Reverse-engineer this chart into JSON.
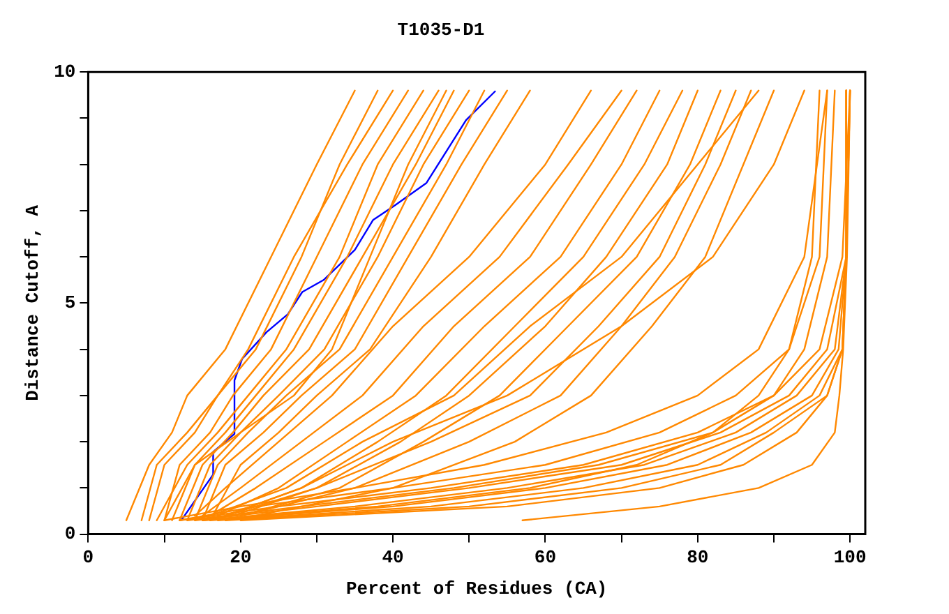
{
  "chart_data": {
    "type": "line",
    "title": "T1035-D1",
    "xlabel": "Percent of Residues (CA)",
    "ylabel": "Distance Cutoff, A",
    "xlim": [
      0,
      102
    ],
    "xticks": [
      0,
      {
        "value": 10,
        "label": null
      },
      20,
      {
        "value": 30,
        "label": null
      },
      40,
      {
        "value": 50,
        "label": null
      },
      60,
      {
        "value": 70,
        "label": null
      },
      80,
      {
        "value": 90,
        "label": null
      },
      100
    ],
    "ylim": [
      0,
      10
    ],
    "yticks": [
      0,
      {
        "value": 1,
        "label": null
      },
      {
        "value": 2,
        "label": null
      },
      {
        "value": 3,
        "label": null
      },
      {
        "value": 4,
        "label": null
      },
      5,
      {
        "value": 6,
        "label": null
      },
      {
        "value": 7,
        "label": null
      },
      {
        "value": 8,
        "label": null
      },
      {
        "value": 9,
        "label": null
      },
      10
    ],
    "grid": false,
    "legend": false,
    "marker": "none",
    "line_style": "solid",
    "series": [
      {
        "color": "#ff8800",
        "x": [
          5,
          8,
          11,
          13,
          18,
          24,
          30,
          35
        ],
        "values": [
          0.3,
          1.5,
          2.2,
          3,
          4,
          6,
          8,
          9.6
        ]
      },
      {
        "color": "#ff8800",
        "x": [
          8,
          10,
          14,
          17,
          22,
          28,
          33,
          38
        ],
        "values": [
          0.3,
          1.5,
          2.2,
          3,
          4,
          6,
          8,
          9.6
        ]
      },
      {
        "color": "#ff8800",
        "x": [
          7,
          9,
          13,
          17,
          21,
          27,
          34,
          40
        ],
        "values": [
          0.3,
          1.5,
          2.2,
          3,
          4,
          6,
          8,
          9.6
        ]
      },
      {
        "color": "#ff8800",
        "x": [
          10,
          12,
          16,
          19,
          24,
          30,
          36,
          42
        ],
        "values": [
          0.3,
          1.5,
          2.2,
          3,
          4,
          6,
          8,
          9.6
        ]
      },
      {
        "color": "#ff8800",
        "x": [
          9,
          13,
          17,
          21,
          26,
          33,
          38,
          44
        ],
        "values": [
          0.3,
          1.5,
          2.2,
          3,
          4,
          6,
          8,
          9.6
        ]
      },
      {
        "color": "#ff8800",
        "x": [
          11,
          14,
          18,
          22,
          27,
          34,
          40,
          46
        ],
        "values": [
          0.3,
          1.5,
          2.2,
          3,
          4,
          6,
          8,
          9.6
        ]
      },
      {
        "color": "#ff8800",
        "x": [
          12,
          15,
          19,
          23,
          29,
          36,
          43,
          48
        ],
        "values": [
          0.3,
          1.5,
          2.2,
          3,
          4,
          6,
          8,
          9.6
        ]
      },
      {
        "color": "#ff8800",
        "x": [
          13,
          16,
          20,
          25,
          31,
          38,
          44,
          50
        ],
        "values": [
          0.3,
          1.5,
          2.2,
          3,
          4,
          6,
          8,
          9.6
        ]
      },
      {
        "color": "#ff8800",
        "x": [
          14,
          17,
          21,
          26,
          33,
          40,
          47,
          52
        ],
        "values": [
          0.3,
          1.5,
          2.2,
          3,
          4,
          6,
          8,
          9.6
        ]
      },
      {
        "color": "#ff8800",
        "x": [
          15,
          18,
          23,
          28,
          35,
          42,
          49,
          55
        ],
        "values": [
          0.3,
          1.5,
          2.2,
          3,
          4,
          6,
          8,
          9.6
        ]
      },
      {
        "color": "#ff8800",
        "x": [
          16,
          20,
          25,
          30,
          37,
          45,
          52,
          58
        ],
        "values": [
          0.3,
          1.5,
          2.2,
          3,
          4,
          6,
          8,
          9.6
        ]
      },
      {
        "color": "#ff8800",
        "x": [
          10,
          14,
          20,
          27,
          32,
          37,
          42,
          47
        ],
        "values": [
          0.3,
          1.5,
          2.2,
          3,
          4,
          6,
          8,
          9.6
        ]
      },
      {
        "color": "#ff8800",
        "x": [
          14,
          18,
          25,
          32,
          40,
          50,
          60,
          66
        ],
        "values": [
          0.4,
          1,
          2,
          3,
          4.5,
          6,
          8,
          9.6
        ]
      },
      {
        "color": "#ff8800",
        "x": [
          15,
          20,
          28,
          36,
          44,
          54,
          63,
          70
        ],
        "values": [
          0.4,
          1,
          2,
          3,
          4.5,
          6,
          8,
          9.6
        ]
      },
      {
        "color": "#ff8800",
        "x": [
          16,
          22,
          31,
          40,
          48,
          58,
          66,
          72
        ],
        "values": [
          0.4,
          1,
          2,
          3,
          4.5,
          6,
          8,
          9.6
        ]
      },
      {
        "color": "#ff8800",
        "x": [
          17,
          25,
          34,
          43,
          52,
          62,
          70,
          75
        ],
        "values": [
          0.4,
          1,
          2,
          3,
          4.5,
          6,
          8,
          9.6
        ]
      },
      {
        "color": "#ff8800",
        "x": [
          18,
          28,
          38,
          47,
          56,
          65,
          73,
          78
        ],
        "values": [
          0.4,
          1,
          2,
          3,
          4.5,
          6,
          8,
          9.6
        ]
      },
      {
        "color": "#ff8800",
        "x": [
          19,
          30,
          41,
          50,
          60,
          68,
          76,
          80
        ],
        "values": [
          0.4,
          1,
          2,
          3,
          4.5,
          6,
          8,
          9.6
        ]
      },
      {
        "color": "#ff8800",
        "x": [
          20,
          33,
          44,
          54,
          63,
          72,
          79,
          83
        ],
        "values": [
          0.4,
          1,
          2,
          3,
          4.5,
          6,
          8,
          9.6
        ]
      },
      {
        "color": "#ff8800",
        "x": [
          18,
          30,
          45,
          58,
          67,
          75,
          81,
          85
        ],
        "values": [
          0.4,
          1,
          2,
          3,
          4.5,
          6,
          8,
          9.6
        ]
      },
      {
        "color": "#ff8800",
        "x": [
          20,
          35,
          50,
          62,
          70,
          77,
          83,
          87
        ],
        "values": [
          0.4,
          1,
          2,
          3,
          4.5,
          6,
          8,
          9.6
        ]
      },
      {
        "color": "#ff8800",
        "x": [
          22,
          40,
          56,
          66,
          74,
          81,
          86,
          90
        ],
        "values": [
          0.4,
          1,
          2,
          3,
          4.5,
          6,
          8,
          9.6
        ]
      },
      {
        "color": "#ff8800",
        "x": [
          16,
          26,
          36,
          48,
          58,
          70,
          80,
          88
        ],
        "values": [
          0.4,
          1,
          2,
          3,
          4.5,
          6,
          8,
          9.6
        ]
      },
      {
        "color": "#ff8800",
        "x": [
          18,
          28,
          40,
          55,
          70,
          82,
          90,
          94
        ],
        "values": [
          0.4,
          1,
          2,
          3,
          4.5,
          6,
          8,
          9.6
        ]
      },
      {
        "color": "#ff8800",
        "x": [
          12,
          25,
          45,
          65,
          80,
          90,
          96,
          99,
          100
        ],
        "values": [
          0.3,
          0.6,
          1,
          1.5,
          2.2,
          3,
          4,
          6,
          9.6
        ]
      },
      {
        "color": "#ff8800",
        "x": [
          14,
          30,
          50,
          70,
          83,
          92,
          97,
          99.5,
          100
        ],
        "values": [
          0.3,
          0.6,
          1,
          1.5,
          2.2,
          3,
          4,
          6,
          9.6
        ]
      },
      {
        "color": "#ff8800",
        "x": [
          15,
          35,
          55,
          73,
          85,
          93,
          98,
          99.5,
          100
        ],
        "values": [
          0.3,
          0.6,
          1,
          1.5,
          2.2,
          3,
          4,
          6,
          9.6
        ]
      },
      {
        "color": "#ff8800",
        "x": [
          16,
          40,
          60,
          76,
          87,
          95,
          98.5,
          99.5,
          99.5
        ],
        "values": [
          0.3,
          0.6,
          1,
          1.5,
          2.2,
          3,
          4,
          6,
          9.6
        ]
      },
      {
        "color": "#ff8800",
        "x": [
          13,
          28,
          48,
          67,
          82,
          90,
          94,
          97,
          98
        ],
        "values": [
          0.3,
          0.6,
          1,
          1.5,
          2.2,
          3,
          4,
          6,
          9.6
        ]
      },
      {
        "color": "#ff8800",
        "x": [
          17,
          45,
          65,
          80,
          89,
          96,
          99,
          99.5,
          99.5
        ],
        "values": [
          0.3,
          0.6,
          1,
          1.5,
          2.2,
          3,
          4,
          6,
          9.6
        ]
      },
      {
        "color": "#ff8800",
        "x": [
          18,
          50,
          70,
          83,
          90,
          97,
          99,
          99.5,
          99.5
        ],
        "values": [
          0.3,
          0.6,
          1,
          1.5,
          2.2,
          3,
          4,
          6,
          9.6
        ]
      },
      {
        "color": "#ff8800",
        "x": [
          12,
          22,
          40,
          60,
          75,
          85,
          92,
          96,
          97
        ],
        "values": [
          0.3,
          0.6,
          1,
          1.5,
          2.2,
          3,
          4,
          6,
          9.6
        ]
      },
      {
        "color": "#ff8800",
        "x": [
          20,
          55,
          75,
          86,
          93,
          97,
          99,
          99.5,
          99.5
        ],
        "values": [
          0.3,
          0.6,
          1,
          1.5,
          2.2,
          3,
          4,
          6,
          9.6
        ]
      },
      {
        "color": "#ff8800",
        "x": [
          57,
          75,
          88,
          95,
          98,
          98.6,
          99.1,
          99.6,
          100
        ],
        "values": [
          0.3,
          0.6,
          1,
          1.5,
          2.2,
          3,
          4,
          6,
          9.6
        ]
      },
      {
        "color": "#ff8800",
        "x": [
          15,
          38,
          58,
          72,
          82,
          88,
          92,
          95,
          96
        ],
        "values": [
          0.3,
          0.6,
          1,
          1.5,
          2.2,
          3,
          4,
          6,
          9.6
        ]
      },
      {
        "color": "#ff8800",
        "x": [
          10,
          20,
          35,
          52,
          68,
          80,
          88,
          94,
          97
        ],
        "values": [
          0.3,
          0.6,
          1,
          1.5,
          2.2,
          3,
          4,
          6,
          9.6
        ]
      },
      {
        "color": "#0000ff",
        "x": [
          12.3,
          16.4,
          16.4,
          19.2,
          19.2,
          20.2,
          23.4,
          26.2,
          28.1,
          30.9,
          35,
          37.4,
          40.3,
          44.4,
          49.6,
          53.4
        ],
        "values": [
          0.32,
          1.29,
          1.78,
          2.17,
          3.33,
          3.79,
          4.37,
          4.76,
          5.24,
          5.5,
          6.15,
          6.8,
          7.12,
          7.6,
          8.96,
          9.58
        ]
      }
    ]
  }
}
